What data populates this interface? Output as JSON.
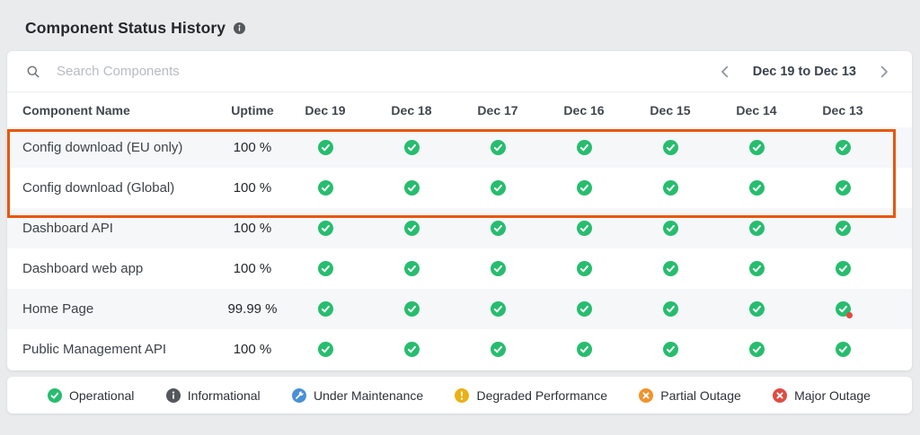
{
  "page": {
    "title": "Component Status History",
    "background": "#eaebed"
  },
  "toolbar": {
    "search_placeholder": "Search Components",
    "date_range": "Dec 19 to Dec 13"
  },
  "table": {
    "columns": [
      "Component Name",
      "Uptime",
      "Dec 19",
      "Dec 18",
      "Dec 17",
      "Dec 16",
      "Dec 15",
      "Dec 14",
      "Dec 13"
    ],
    "rows": [
      {
        "name": "Config download (EU only)",
        "uptime": "100 %",
        "statuses": [
          "operational",
          "operational",
          "operational",
          "operational",
          "operational",
          "operational",
          "operational"
        ]
      },
      {
        "name": "Config download (Global)",
        "uptime": "100 %",
        "statuses": [
          "operational",
          "operational",
          "operational",
          "operational",
          "operational",
          "operational",
          "operational"
        ]
      },
      {
        "name": "Dashboard API",
        "uptime": "100 %",
        "statuses": [
          "operational",
          "operational",
          "operational",
          "operational",
          "operational",
          "operational",
          "operational"
        ]
      },
      {
        "name": "Dashboard web app",
        "uptime": "100 %",
        "statuses": [
          "operational",
          "operational",
          "operational",
          "operational",
          "operational",
          "operational",
          "operational"
        ]
      },
      {
        "name": "Home Page",
        "uptime": "99.99 %",
        "statuses": [
          "operational",
          "operational",
          "operational",
          "operational",
          "operational",
          "operational",
          "operational-with-incident"
        ]
      },
      {
        "name": "Public Management API",
        "uptime": "100 %",
        "statuses": [
          "operational",
          "operational",
          "operational",
          "operational",
          "operational",
          "operational",
          "operational"
        ]
      }
    ]
  },
  "annotation": {
    "color": "#e8570a",
    "highlighted_rows": [
      "Config download (EU only)",
      "Config download (Global)"
    ]
  },
  "status_colors": {
    "operational": "#27bd6e",
    "incident_dot": "#e6483c",
    "info": "#54585c"
  },
  "legend": {
    "items": [
      {
        "label": "Operational",
        "icon": "check-circle-icon",
        "color": "#27bd6e"
      },
      {
        "label": "Informational",
        "icon": "info-circle-icon",
        "color": "#54585c"
      },
      {
        "label": "Under Maintenance",
        "icon": "wrench-circle-icon",
        "color": "#4a90d5"
      },
      {
        "label": "Degraded Performance",
        "icon": "exclamation-circle-icon",
        "color": "#eab117"
      },
      {
        "label": "Partial Outage",
        "icon": "x-circle-icon",
        "color": "#f0932a"
      },
      {
        "label": "Major Outage",
        "icon": "x-circle-icon",
        "color": "#e04b41"
      }
    ]
  }
}
